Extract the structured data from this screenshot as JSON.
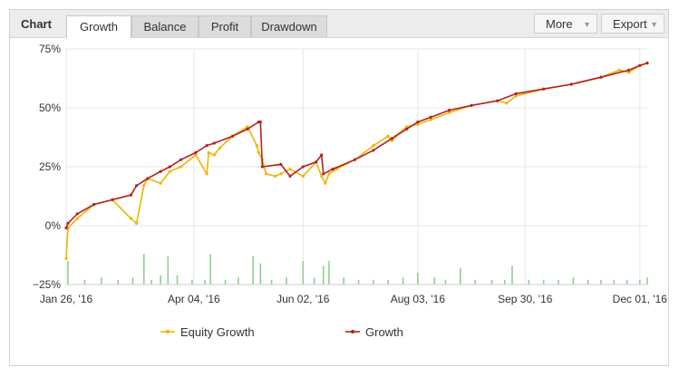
{
  "toolbar": {
    "title": "Chart",
    "tabs": [
      {
        "label": "Growth",
        "active": true
      },
      {
        "label": "Balance",
        "active": false
      },
      {
        "label": "Profit",
        "active": false
      },
      {
        "label": "Drawdown",
        "active": false
      }
    ],
    "more_label": "More",
    "export_label": "Export"
  },
  "colors": {
    "growth": "#b22222",
    "equity": "#f0b400",
    "volume": "#8ed08e",
    "grid": "#e6e6e6"
  },
  "chart_data": {
    "type": "line",
    "title": "",
    "xlabel": "",
    "ylabel": "",
    "ylim": [
      -25,
      75
    ],
    "y_ticks": [
      "75%",
      "50%",
      "25%",
      "0%",
      "−25%"
    ],
    "x_ticks": [
      "Jan 26, '16",
      "Apr 04, '16",
      "Jun 02, '16",
      "Aug 03, '16",
      "Sep 30, '16",
      "Dec 01, '16"
    ],
    "grid": true,
    "legend_position": "bottom",
    "series": [
      {
        "name": "Equity Growth",
        "x": [
          "2016-01-26",
          "2016-01-27",
          "2016-02-01",
          "2016-02-10",
          "2016-02-20",
          "2016-03-01",
          "2016-03-04",
          "2016-03-08",
          "2016-03-10",
          "2016-03-17",
          "2016-03-22",
          "2016-03-28",
          "2016-04-05",
          "2016-04-11",
          "2016-04-12",
          "2016-04-15",
          "2016-04-18",
          "2016-04-25",
          "2016-05-03",
          "2016-05-08",
          "2016-05-09",
          "2016-05-11",
          "2016-05-13",
          "2016-05-18",
          "2016-05-21",
          "2016-05-26",
          "2016-06-02",
          "2016-06-09",
          "2016-06-12",
          "2016-06-14",
          "2016-06-16",
          "2016-06-20",
          "2016-06-30",
          "2016-07-10",
          "2016-07-18",
          "2016-07-20",
          "2016-07-22",
          "2016-07-28",
          "2016-08-03",
          "2016-08-10",
          "2016-08-20",
          "2016-09-01",
          "2016-09-15",
          "2016-09-20",
          "2016-09-25",
          "2016-10-10",
          "2016-10-25",
          "2016-11-10",
          "2016-11-20",
          "2016-11-25",
          "2016-12-01",
          "2016-12-05"
        ],
        "values": [
          -14,
          -1,
          3,
          9,
          11,
          3,
          1,
          17,
          20,
          18,
          23,
          25,
          30,
          22,
          31,
          30,
          33,
          38,
          42,
          34,
          31,
          28,
          22,
          21,
          22,
          24,
          21,
          27,
          21,
          18,
          22,
          24,
          28,
          34,
          38,
          36,
          38,
          42,
          43,
          45,
          48,
          51,
          53,
          52,
          55,
          58,
          60,
          63,
          66,
          65,
          68,
          69
        ]
      },
      {
        "name": "Growth",
        "x": [
          "2016-01-26",
          "2016-01-27",
          "2016-02-01",
          "2016-02-10",
          "2016-02-20",
          "2016-03-01",
          "2016-03-04",
          "2016-03-10",
          "2016-03-17",
          "2016-03-22",
          "2016-03-28",
          "2016-04-05",
          "2016-04-11",
          "2016-04-15",
          "2016-04-25",
          "2016-05-03",
          "2016-05-09",
          "2016-05-10",
          "2016-05-11",
          "2016-05-21",
          "2016-05-26",
          "2016-06-02",
          "2016-06-09",
          "2016-06-12",
          "2016-06-13",
          "2016-06-18",
          "2016-06-30",
          "2016-07-10",
          "2016-07-20",
          "2016-07-28",
          "2016-08-03",
          "2016-08-10",
          "2016-08-20",
          "2016-09-01",
          "2016-09-15",
          "2016-09-25",
          "2016-10-10",
          "2016-10-25",
          "2016-11-10",
          "2016-11-25",
          "2016-12-01",
          "2016-12-05"
        ],
        "values": [
          -1,
          1,
          5,
          9,
          11,
          13,
          17,
          20,
          23,
          25,
          28,
          31,
          34,
          35,
          38,
          41,
          44,
          44,
          25,
          26,
          21,
          25,
          27,
          30,
          22,
          24,
          28,
          32,
          37,
          41,
          44,
          46,
          49,
          51,
          53,
          56,
          58,
          60,
          63,
          66,
          68,
          69
        ]
      },
      {
        "name": "",
        "type": "bar",
        "x": [
          "2016-01-27",
          "2016-02-05",
          "2016-02-14",
          "2016-02-23",
          "2016-03-02",
          "2016-03-08",
          "2016-03-12",
          "2016-03-17",
          "2016-03-21",
          "2016-03-26",
          "2016-04-03",
          "2016-04-10",
          "2016-04-13",
          "2016-04-21",
          "2016-04-28",
          "2016-05-06",
          "2016-05-10",
          "2016-05-16",
          "2016-05-24",
          "2016-06-02",
          "2016-06-08",
          "2016-06-13",
          "2016-06-16",
          "2016-06-24",
          "2016-07-02",
          "2016-07-10",
          "2016-07-18",
          "2016-07-26",
          "2016-08-03",
          "2016-08-12",
          "2016-08-18",
          "2016-08-26",
          "2016-09-03",
          "2016-09-12",
          "2016-09-19",
          "2016-09-23",
          "2016-10-02",
          "2016-10-10",
          "2016-10-18",
          "2016-10-26",
          "2016-11-03",
          "2016-11-10",
          "2016-11-17",
          "2016-11-24",
          "2016-12-01",
          "2016-12-05"
        ],
        "values": [
          10,
          2,
          3,
          2,
          3,
          13,
          2,
          4,
          12,
          4,
          2,
          2,
          13,
          2,
          3,
          12,
          9,
          2,
          3,
          10,
          3,
          8,
          10,
          3,
          2,
          2,
          2,
          3,
          5,
          3,
          2,
          7,
          2,
          2,
          2,
          8,
          2,
          2,
          2,
          3,
          2,
          2,
          2,
          2,
          2,
          3
        ]
      }
    ]
  }
}
